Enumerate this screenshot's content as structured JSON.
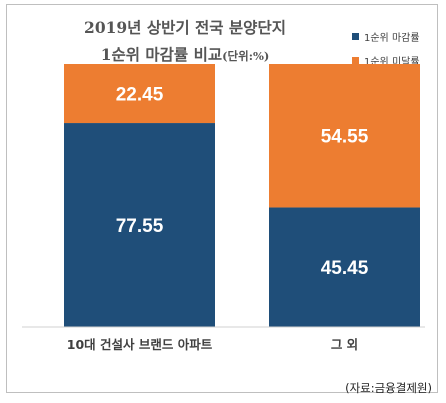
{
  "chart_data": {
    "type": "bar",
    "stacked": true,
    "title_line1": "2019년 상반기 전국 분양단지",
    "title_line2": "1순위 마감률 비교",
    "title_unit": "(단위:%)",
    "categories": [
      "10대 건설사 브랜드 아파트",
      "그 외"
    ],
    "series": [
      {
        "name": "1순위 마감률",
        "values": [
          77.55,
          45.45
        ],
        "color": "#1f4e79"
      },
      {
        "name": "1순위 미달률",
        "values": [
          22.45,
          54.55
        ],
        "color": "#ed7d31"
      }
    ],
    "data_labels": [
      [
        "77.55",
        "45.45"
      ],
      [
        "22.45",
        "54.55"
      ]
    ],
    "ylim": [
      0,
      100
    ],
    "legend_position": "top-right",
    "grid": false
  },
  "source": "(자료:금융결제원)"
}
